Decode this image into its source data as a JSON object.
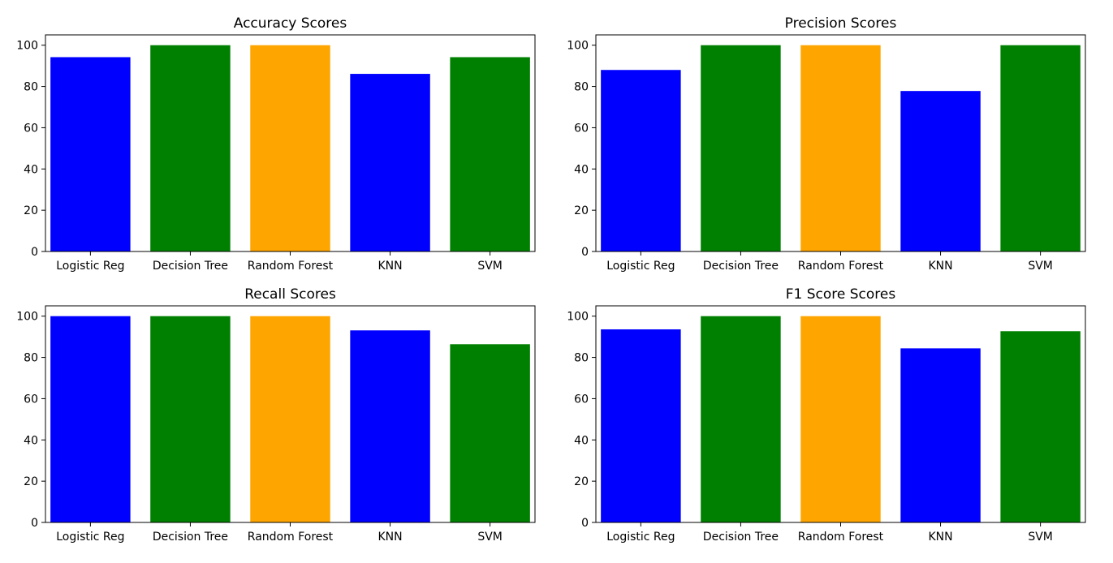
{
  "chart_data": [
    {
      "type": "bar",
      "title": "Accuracy Scores",
      "categories": [
        "Logistic Reg",
        "Decision Tree",
        "Random Forest",
        "KNN",
        "SVM"
      ],
      "values": [
        94.2,
        100,
        100,
        86.1,
        94.2
      ],
      "colors": [
        "#0000ff",
        "#008000",
        "#ffa500",
        "#0000ff",
        "#008000"
      ],
      "ylim": [
        0,
        105
      ],
      "yticks": [
        0,
        20,
        40,
        60,
        80,
        100
      ],
      "xlabel": "",
      "ylabel": "",
      "grid": false
    },
    {
      "type": "bar",
      "title": "Precision Scores",
      "categories": [
        "Logistic Reg",
        "Decision Tree",
        "Random Forest",
        "KNN",
        "SVM"
      ],
      "values": [
        88,
        100,
        100,
        77.8,
        100
      ],
      "colors": [
        "#0000ff",
        "#008000",
        "#ffa500",
        "#0000ff",
        "#008000"
      ],
      "ylim": [
        0,
        105
      ],
      "yticks": [
        0,
        20,
        40,
        60,
        80,
        100
      ],
      "xlabel": "",
      "ylabel": "",
      "grid": false
    },
    {
      "type": "bar",
      "title": "Recall Scores",
      "categories": [
        "Logistic Reg",
        "Decision Tree",
        "Random Forest",
        "KNN",
        "SVM"
      ],
      "values": [
        100,
        100,
        100,
        93.1,
        86.4
      ],
      "colors": [
        "#0000ff",
        "#008000",
        "#ffa500",
        "#0000ff",
        "#008000"
      ],
      "ylim": [
        0,
        105
      ],
      "yticks": [
        0,
        20,
        40,
        60,
        80,
        100
      ],
      "xlabel": "",
      "ylabel": "",
      "grid": false
    },
    {
      "type": "bar",
      "title": "F1 Score Scores",
      "categories": [
        "Logistic Reg",
        "Decision Tree",
        "Random Forest",
        "KNN",
        "SVM"
      ],
      "values": [
        93.6,
        100,
        100,
        84.4,
        92.7
      ],
      "colors": [
        "#0000ff",
        "#008000",
        "#ffa500",
        "#0000ff",
        "#008000"
      ],
      "ylim": [
        0,
        105
      ],
      "yticks": [
        0,
        20,
        40,
        60,
        80,
        100
      ],
      "xlabel": "",
      "ylabel": "",
      "grid": false
    }
  ]
}
